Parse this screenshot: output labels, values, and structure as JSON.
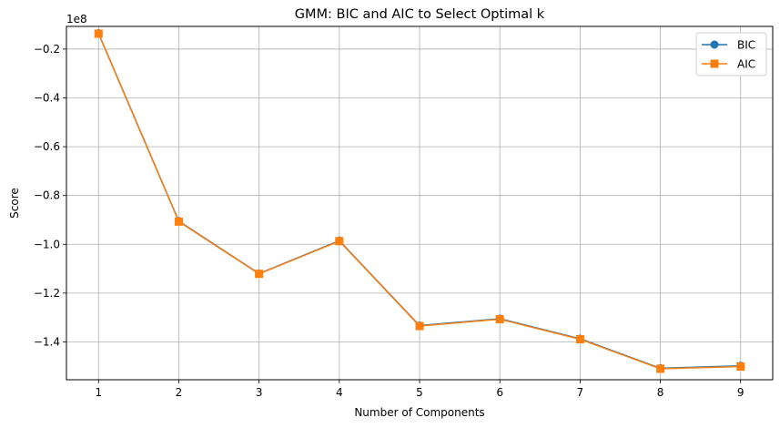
{
  "chart_data": {
    "type": "line",
    "title": "GMM: BIC and AIC to Select Optimal k",
    "xlabel": "Number of Components",
    "ylabel": "Score",
    "y_offset_label": "1e8",
    "x": [
      1,
      2,
      3,
      4,
      5,
      6,
      7,
      8,
      9
    ],
    "x_ticks": [
      "1",
      "2",
      "3",
      "4",
      "5",
      "6",
      "7",
      "8",
      "9"
    ],
    "y_ticks": [
      -1.4,
      -1.2,
      -1.0,
      -0.8,
      -0.6,
      -0.4,
      -0.2
    ],
    "y_tick_labels": [
      "−1.4",
      "−1.2",
      "−1.0",
      "−0.8",
      "−0.6",
      "−0.4",
      "−0.2"
    ],
    "xlim": [
      0.6,
      9.4
    ],
    "ylim": [
      -1.555,
      -0.107
    ],
    "grid": true,
    "legend_position": "top-right",
    "series": [
      {
        "name": "BIC",
        "marker": "circle",
        "color": "#1f77b4",
        "values": [
          -0.135,
          -0.905,
          -1.12,
          -0.985,
          -1.333,
          -1.305,
          -1.387,
          -1.508,
          -1.498
        ]
      },
      {
        "name": "AIC",
        "marker": "square",
        "color": "#ff7f0e",
        "values": [
          -0.137,
          -0.907,
          -1.121,
          -0.987,
          -1.335,
          -1.307,
          -1.389,
          -1.51,
          -1.501
        ]
      }
    ]
  }
}
